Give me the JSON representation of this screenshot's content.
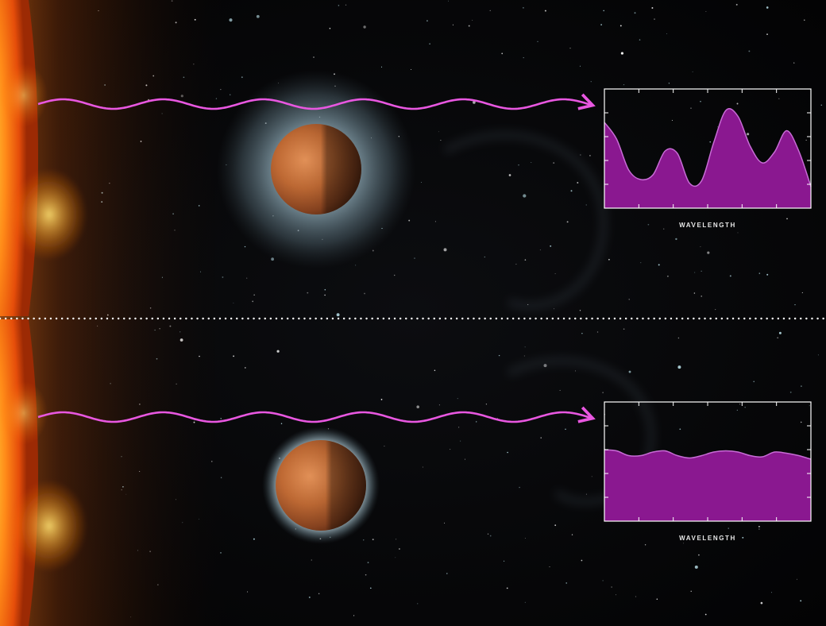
{
  "panels": [
    {
      "id": "top",
      "atmosphere": "extended",
      "chart": {
        "xlabel": "WAVELENGTH",
        "type": "area",
        "values": [
          0.72,
          0.58,
          0.32,
          0.24,
          0.28,
          0.48,
          0.46,
          0.21,
          0.23,
          0.55,
          0.82,
          0.77,
          0.52,
          0.38,
          0.47,
          0.65,
          0.48,
          0.18
        ]
      }
    },
    {
      "id": "bottom",
      "atmosphere": "thin",
      "chart": {
        "xlabel": "WAVELENGTH",
        "type": "area",
        "values": [
          0.6,
          0.59,
          0.55,
          0.55,
          0.58,
          0.59,
          0.55,
          0.53,
          0.55,
          0.58,
          0.59,
          0.58,
          0.55,
          0.54,
          0.58,
          0.57,
          0.55,
          0.52
        ]
      }
    }
  ],
  "colors": {
    "light_wave": "#e857e0",
    "spectrum_fill": "#8a1890",
    "spectrum_line": "#c86cd6",
    "frame": "#ffffff",
    "planet": "#b65a2c",
    "atmosphere": "#a9c6d2",
    "star": "#ff6a10",
    "divider": "#ffffff"
  }
}
